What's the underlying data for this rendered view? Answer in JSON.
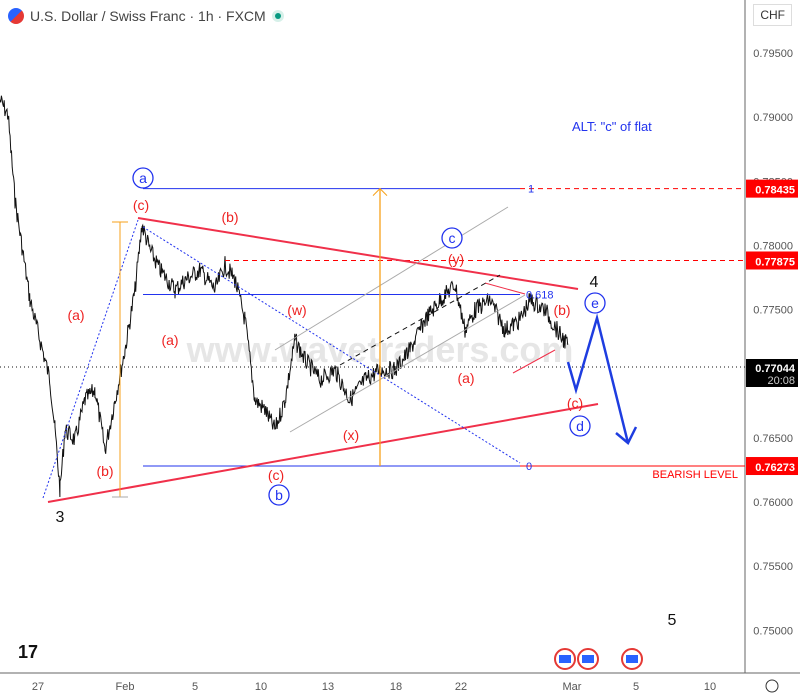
{
  "header": {
    "title": "U.S. Dollar / Swiss Franc · 1h · FXCM",
    "currency": "CHF",
    "status_color": "#089981"
  },
  "watermark": "www.wavetraders.com",
  "chart_data": {
    "type": "line",
    "symbol": "USDCHF",
    "timeframe": "1h",
    "ylim": [
      0.7465,
      0.7985
    ],
    "y_ticks": [
      "0.79500",
      "0.79000",
      "0.78500",
      "0.78000",
      "0.77500",
      "0.76500",
      "0.76000",
      "0.75500",
      "0.75000"
    ],
    "x_ticks": [
      "27",
      "Feb",
      "5",
      "10",
      "13",
      "18",
      "22",
      "Mar",
      "5",
      "10"
    ],
    "price_labels": [
      {
        "value": "0.78435",
        "color": "#ff0000"
      },
      {
        "value": "0.77875",
        "color": "#ff0000"
      },
      {
        "value": "0.76273",
        "color": "#ff0000"
      }
    ],
    "current_price": "0.77044",
    "countdown": "20:08",
    "fib_levels": [
      {
        "label": "1",
        "price": 0.78435
      },
      {
        "label": "0.618",
        "price": 0.7761
      },
      {
        "label": "0",
        "price": 0.76273
      }
    ],
    "annotations": {
      "alt": "ALT: \"c\" of flat",
      "bearish": "BEARISH LEVEL",
      "wave_3": "3",
      "wave_4": "4",
      "wave_5": "5",
      "circ_a": "a",
      "circ_b": "b",
      "circ_c": "c",
      "circ_d": "d",
      "circ_e": "e",
      "red": [
        "(a)",
        "(b)",
        "(c)",
        "(a)",
        "(b)",
        "(c)",
        "(w)",
        "(x)",
        "(y)",
        "(a)",
        "(b)",
        "(c)"
      ]
    }
  }
}
